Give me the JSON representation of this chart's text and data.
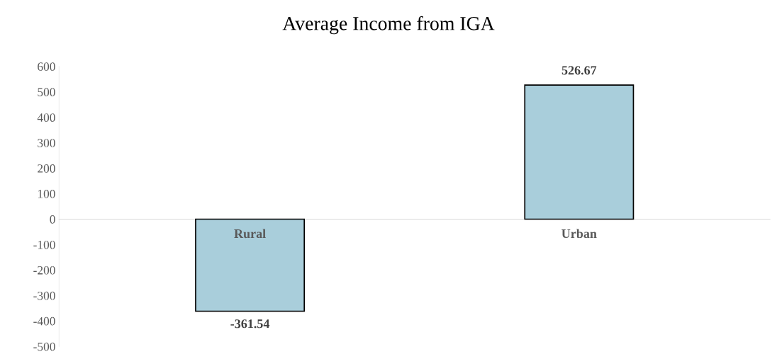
{
  "chart_data": {
    "type": "bar",
    "title": "Average Income from IGA",
    "categories": [
      "Rural",
      "Urban"
    ],
    "series": [
      {
        "color": "#a9cedb",
        "values": [
          -361.54,
          526.67
        ]
      }
    ],
    "data_labels": true,
    "ylim": [
      -500,
      600
    ],
    "yticks": [
      -500,
      -400,
      -300,
      -200,
      -100,
      0,
      100,
      200,
      300,
      400,
      500,
      600
    ],
    "legend": false
  }
}
